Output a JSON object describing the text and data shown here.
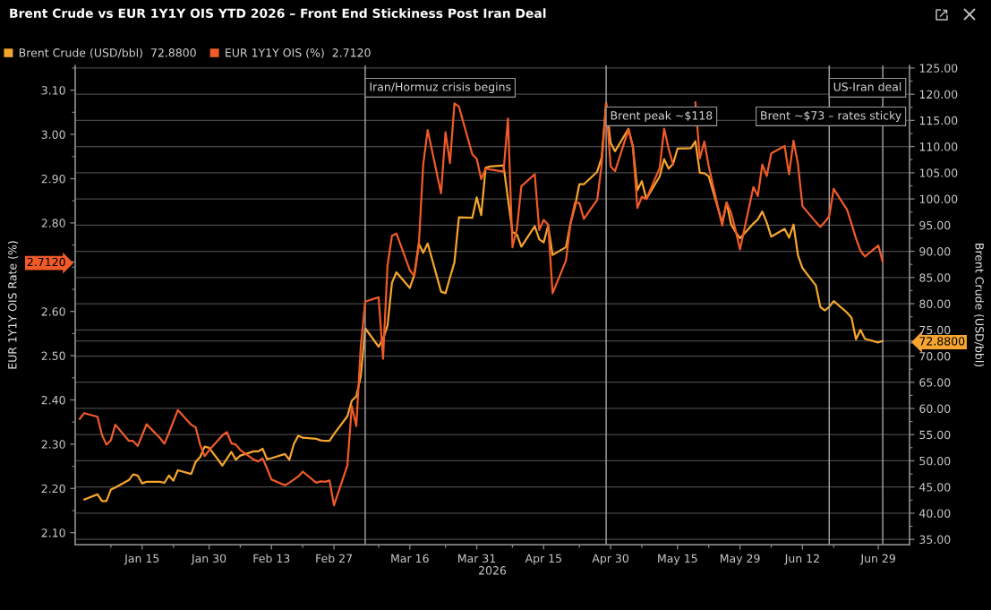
{
  "chart_data": {
    "type": "line",
    "title": "Brent Crude vs EUR 1Y1Y OIS YTD 2026 – Front End Stickiness Post Iran Deal",
    "xlabel": "2026",
    "ylabel": "EUR 1Y1Y OIS Rate (%)",
    "y2label": "Brent Crude (USD/bbl)",
    "x": [
      "2026-01-01",
      "2026-01-02",
      "2026-01-05",
      "2026-01-06",
      "2026-01-07",
      "2026-01-08",
      "2026-01-09",
      "2026-01-12",
      "2026-01-13",
      "2026-01-14",
      "2026-01-15",
      "2026-01-16",
      "2026-01-19",
      "2026-01-20",
      "2026-01-21",
      "2026-01-22",
      "2026-01-23",
      "2026-01-26",
      "2026-01-27",
      "2026-01-28",
      "2026-01-29",
      "2026-01-30",
      "2026-02-02",
      "2026-02-03",
      "2026-02-04",
      "2026-02-05",
      "2026-02-06",
      "2026-02-09",
      "2026-02-10",
      "2026-02-11",
      "2026-02-12",
      "2026-02-13",
      "2026-02-16",
      "2026-02-17",
      "2026-02-18",
      "2026-02-19",
      "2026-02-20",
      "2026-02-23",
      "2026-02-24",
      "2026-02-25",
      "2026-02-26",
      "2026-02-27",
      "2026-03-02",
      "2026-03-03",
      "2026-03-04",
      "2026-03-05",
      "2026-03-06",
      "2026-03-09",
      "2026-03-10",
      "2026-03-11",
      "2026-03-12",
      "2026-03-13",
      "2026-03-16",
      "2026-03-17",
      "2026-03-18",
      "2026-03-19",
      "2026-03-20",
      "2026-03-23",
      "2026-03-24",
      "2026-03-25",
      "2026-03-26",
      "2026-03-27",
      "2026-03-30",
      "2026-03-31",
      "2026-04-01",
      "2026-04-02",
      "2026-04-03",
      "2026-04-06",
      "2026-04-07",
      "2026-04-08",
      "2026-04-09",
      "2026-04-10",
      "2026-04-13",
      "2026-04-14",
      "2026-04-15",
      "2026-04-16",
      "2026-04-17",
      "2026-04-20",
      "2026-04-21",
      "2026-04-22",
      "2026-04-23",
      "2026-04-24",
      "2026-04-27",
      "2026-04-28",
      "2026-04-29",
      "2026-04-30",
      "2026-05-01",
      "2026-05-04",
      "2026-05-05",
      "2026-05-06",
      "2026-05-07",
      "2026-05-08",
      "2026-05-11",
      "2026-05-12",
      "2026-05-13",
      "2026-05-14",
      "2026-05-15",
      "2026-05-18",
      "2026-05-19",
      "2026-05-20",
      "2026-05-21",
      "2026-05-22",
      "2026-05-25",
      "2026-05-26",
      "2026-05-27",
      "2026-05-28",
      "2026-05-29",
      "2026-06-01",
      "2026-06-02",
      "2026-06-03",
      "2026-06-04",
      "2026-06-05",
      "2026-06-08",
      "2026-06-09",
      "2026-06-10",
      "2026-06-11",
      "2026-06-12",
      "2026-06-15",
      "2026-06-16",
      "2026-06-17",
      "2026-06-18",
      "2026-06-19",
      "2026-06-22",
      "2026-06-23",
      "2026-06-24",
      "2026-06-25",
      "2026-06-26",
      "2026-06-29",
      "2026-06-30"
    ],
    "series": [
      {
        "name": "Brent Crude (USD/bbl)  72.8800",
        "color": "#f5a52f",
        "axis": "y2",
        "values": [
          null,
          42.6,
          43.6,
          42.3,
          42.3,
          44.5,
          44.9,
          46.3,
          47.4,
          47.2,
          45.7,
          46.0,
          46.0,
          45.8,
          47.2,
          46.2,
          48.2,
          47.5,
          49.8,
          50.7,
          52.7,
          52.5,
          49.1,
          50.4,
          51.7,
          50.2,
          51.0,
          51.8,
          51.8,
          52.3,
          50.3,
          50.5,
          51.3,
          50.2,
          53.2,
          54.8,
          54.4,
          54.2,
          53.9,
          53.8,
          53.8,
          55.1,
          58.5,
          61.5,
          62.3,
          66.1,
          75.3,
          71.8,
          73.3,
          75.8,
          84.0,
          86.0,
          83.0,
          85.5,
          91.5,
          89.7,
          91.5,
          82.3,
          82.0,
          85.0,
          87.9,
          96.5,
          96.4,
          100.3,
          96.9,
          106.0,
          106.2,
          106.4,
          100.0,
          93.7,
          93.2,
          90.9,
          94.8,
          92.3,
          91.7,
          94.9,
          89.3,
          90.8,
          95.3,
          98.5,
          102.8,
          102.8,
          105.2,
          107.9,
          118.4,
          110.7,
          109.1,
          113.4,
          110.0,
          101.7,
          103.4,
          100.0,
          104.3,
          107.6,
          105.8,
          106.7,
          109.6,
          109.7,
          111.0,
          105.0,
          104.9,
          104.3,
          95.5,
          99.3,
          95.2,
          93.7,
          92.5,
          95.3,
          96.1,
          97.6,
          95.5,
          92.8,
          94.3,
          92.6,
          95.1,
          89.2,
          86.8,
          83.5,
          79.4,
          78.7,
          79.4,
          80.5,
          78.3,
          77.3,
          73.2,
          75.0,
          73.3,
          72.6,
          72.88
        ]
      },
      {
        "name": "EUR 1Y1Y OIS (%)  2.7120",
        "color": "#f05a28",
        "axis": "y",
        "values": [
          2.357,
          2.37,
          2.362,
          2.321,
          2.299,
          2.309,
          2.344,
          2.308,
          2.307,
          2.296,
          2.32,
          2.345,
          2.314,
          2.301,
          2.325,
          2.351,
          2.377,
          2.344,
          2.338,
          2.299,
          2.273,
          2.286,
          2.32,
          2.327,
          2.302,
          2.299,
          2.287,
          2.265,
          2.261,
          2.268,
          2.245,
          2.22,
          2.207,
          2.213,
          2.22,
          2.227,
          2.238,
          2.213,
          2.216,
          2.215,
          2.218,
          2.162,
          2.252,
          2.386,
          2.341,
          2.52,
          2.622,
          2.632,
          2.493,
          2.704,
          2.771,
          2.776,
          2.693,
          2.68,
          2.747,
          2.932,
          3.01,
          2.867,
          3.005,
          2.935,
          3.07,
          3.063,
          2.955,
          2.945,
          2.899,
          2.923,
          2.921,
          2.916,
          3.036,
          2.745,
          2.787,
          2.883,
          2.91,
          2.784,
          2.807,
          2.796,
          2.641,
          2.715,
          2.798,
          2.846,
          2.845,
          2.809,
          2.852,
          2.932,
          3.069,
          2.928,
          2.917,
          3.011,
          2.971,
          2.834,
          2.859,
          2.854,
          2.924,
          3.013,
          2.968,
          2.932,
          null,
          null,
          3.073,
          2.946,
          2.984,
          2.928,
          2.794,
          2.846,
          2.823,
          2.784,
          2.74,
          2.881,
          2.861,
          2.932,
          2.906,
          2.957,
          2.974,
          2.91,
          2.986,
          2.932,
          2.838,
          2.802,
          2.791,
          2.802,
          2.815,
          2.877,
          2.83,
          2.798,
          2.765,
          2.737,
          2.724,
          2.749,
          2.712
        ]
      }
    ],
    "xlim": [
      "2025-12-31",
      "2026-07-06"
    ],
    "xticks": [
      {
        "value": "2026-01-08",
        "label": null
      },
      {
        "value": "2026-01-15",
        "label": "Jan 15"
      },
      {
        "value": "2026-01-22",
        "label": null
      },
      {
        "value": "2026-01-30",
        "label": "Jan 30"
      },
      {
        "value": "2026-02-06",
        "label": null
      },
      {
        "value": "2026-02-13",
        "label": "Feb 13"
      },
      {
        "value": "2026-02-20",
        "label": null
      },
      {
        "value": "2026-02-27",
        "label": "Feb 27"
      },
      {
        "value": "2026-03-09",
        "label": null
      },
      {
        "value": "2026-03-16",
        "label": "Mar 16"
      },
      {
        "value": "2026-03-24",
        "label": null
      },
      {
        "value": "2026-03-31",
        "label": "Mar 31"
      },
      {
        "value": "2026-04-08",
        "label": null
      },
      {
        "value": "2026-04-15",
        "label": "Apr 15"
      },
      {
        "value": "2026-04-23",
        "label": null
      },
      {
        "value": "2026-04-30",
        "label": "Apr 30"
      },
      {
        "value": "2026-05-07",
        "label": null
      },
      {
        "value": "2026-05-15",
        "label": "May 15"
      },
      {
        "value": "2026-05-22",
        "label": null
      },
      {
        "value": "2026-05-29",
        "label": "May 29"
      },
      {
        "value": "2026-06-05",
        "label": null
      },
      {
        "value": "2026-06-12",
        "label": "Jun 12"
      },
      {
        "value": "2026-06-19",
        "label": null
      },
      {
        "value": "2026-06-29",
        "label": "Jun 29"
      }
    ],
    "ylim": [
      2.073,
      3.156
    ],
    "yticks": [
      {
        "value": 2.1,
        "label": "2.10"
      },
      {
        "value": 2.15,
        "label": null
      },
      {
        "value": 2.2,
        "label": "2.20"
      },
      {
        "value": 2.25,
        "label": null
      },
      {
        "value": 2.3,
        "label": "2.30"
      },
      {
        "value": 2.35,
        "label": null
      },
      {
        "value": 2.4,
        "label": "2.40"
      },
      {
        "value": 2.45,
        "label": null
      },
      {
        "value": 2.5,
        "label": "2.50"
      },
      {
        "value": 2.55,
        "label": null
      },
      {
        "value": 2.6,
        "label": "2.60"
      },
      {
        "value": 2.65,
        "label": null
      },
      {
        "value": 2.7,
        "label": null
      },
      {
        "value": 2.712,
        "label": "2.7120"
      },
      {
        "value": 2.75,
        "label": null
      },
      {
        "value": 2.8,
        "label": "2.80"
      },
      {
        "value": 2.85,
        "label": null
      },
      {
        "value": 2.9,
        "label": "2.90"
      },
      {
        "value": 2.95,
        "label": null
      },
      {
        "value": 3.0,
        "label": "3.00"
      },
      {
        "value": 3.05,
        "label": null
      },
      {
        "value": 3.1,
        "label": "3.10"
      },
      {
        "value": 3.15,
        "label": null
      }
    ],
    "y2lim": [
      34,
      125.5
    ],
    "y2ticks": [
      {
        "value": 35,
        "label": "35.00"
      },
      {
        "value": 37.5,
        "label": null
      },
      {
        "value": 40,
        "label": "40.00"
      },
      {
        "value": 42.5,
        "label": null
      },
      {
        "value": 45,
        "label": "45.00"
      },
      {
        "value": 47.5,
        "label": null
      },
      {
        "value": 50,
        "label": "50.00"
      },
      {
        "value": 52.5,
        "label": null
      },
      {
        "value": 55,
        "label": "55.00"
      },
      {
        "value": 57.5,
        "label": null
      },
      {
        "value": 60,
        "label": "60.00"
      },
      {
        "value": 62.5,
        "label": null
      },
      {
        "value": 65,
        "label": "65.00"
      },
      {
        "value": 67.5,
        "label": null
      },
      {
        "value": 70,
        "label": "70.00"
      },
      {
        "value": 72.5,
        "label": null
      },
      {
        "value": 72.88,
        "label": "72.8800"
      },
      {
        "value": 75,
        "label": "75.00"
      },
      {
        "value": 77.5,
        "label": null
      },
      {
        "value": 80,
        "label": "80.00"
      },
      {
        "value": 82.5,
        "label": null
      },
      {
        "value": 85,
        "label": "85.00"
      },
      {
        "value": 87.5,
        "label": null
      },
      {
        "value": 90,
        "label": "90.00"
      },
      {
        "value": 92.5,
        "label": null
      },
      {
        "value": 95,
        "label": "95.00"
      },
      {
        "value": 97.5,
        "label": null
      },
      {
        "value": 100,
        "label": "100.00"
      },
      {
        "value": 102.5,
        "label": null
      },
      {
        "value": 105,
        "label": "105.00"
      },
      {
        "value": 107.5,
        "label": null
      },
      {
        "value": 110,
        "label": "110.00"
      },
      {
        "value": 112.5,
        "label": null
      },
      {
        "value": 115,
        "label": "115.00"
      },
      {
        "value": 117.5,
        "label": null
      },
      {
        "value": 120,
        "label": "120.00"
      },
      {
        "value": 122.5,
        "label": null
      },
      {
        "value": 125,
        "label": "125.00"
      }
    ],
    "ref_lines": [
      {
        "axis": "x",
        "value": "2026-03-06",
        "label": "Iran/Hormuz crisis begins",
        "color": "#a8a8a8"
      },
      {
        "axis": "x",
        "value": "2026-04-29",
        "label": "Brent peak ~$118",
        "color": "#a8a8a8"
      },
      {
        "axis": "x",
        "value": "2026-06-18",
        "label": "US-Iran deal",
        "color": "#a8a8a8"
      },
      {
        "axis": "x",
        "value": "2026-06-30",
        "label": "Brent ~$73 – rates sticky",
        "color": "#a8a8a8"
      }
    ],
    "grid": "y2",
    "legend": "top left"
  }
}
